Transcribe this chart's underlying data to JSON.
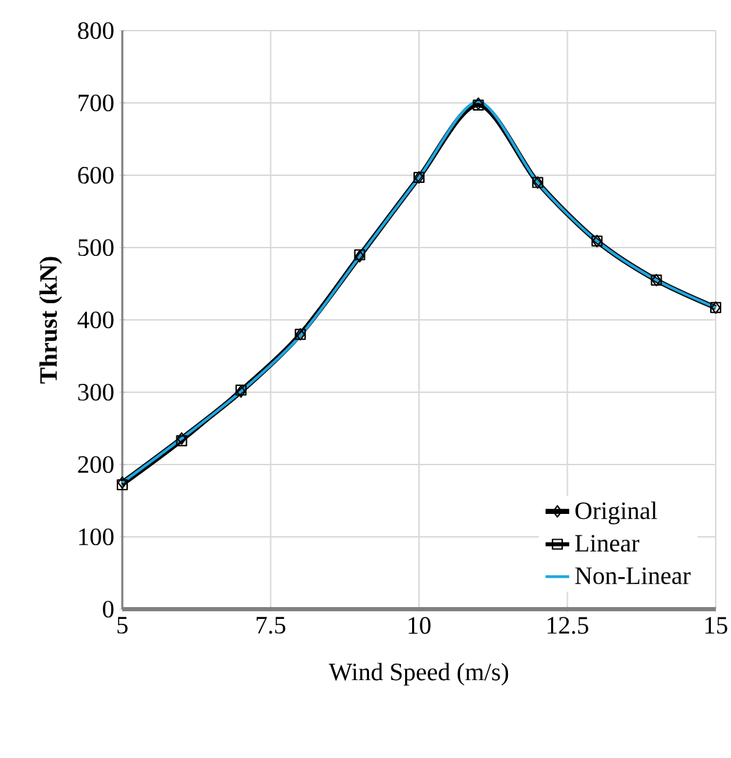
{
  "chart_data": {
    "type": "line",
    "xlabel": "Wind Speed (m/s)",
    "ylabel": "Thrust (kN)",
    "x": [
      5,
      6,
      7,
      8,
      9,
      10,
      11,
      12,
      13,
      14,
      15
    ],
    "series": [
      {
        "name": "Original",
        "color": "#000000",
        "marker": "diamond",
        "values": [
          175,
          236,
          301,
          380,
          488,
          597,
          699,
          590,
          509,
          455,
          417
        ]
      },
      {
        "name": "Linear",
        "color": "#000000",
        "marker": "square",
        "values": [
          172,
          233,
          303,
          380,
          490,
          597,
          697,
          590,
          509,
          455,
          417
        ]
      },
      {
        "name": "Non-Linear",
        "color": "#1ea7e1",
        "marker": "none",
        "values": [
          175,
          236,
          301,
          378,
          488,
          597,
          702,
          590,
          509,
          455,
          417
        ]
      }
    ],
    "xlim": [
      5,
      15
    ],
    "xticks": [
      5,
      7.5,
      10,
      12.5,
      15
    ],
    "ylim": [
      0,
      800
    ],
    "yticks": [
      0,
      100,
      200,
      300,
      400,
      500,
      600,
      700,
      800
    ],
    "grid": true,
    "legend": "bottom right",
    "line_style": "solid"
  }
}
